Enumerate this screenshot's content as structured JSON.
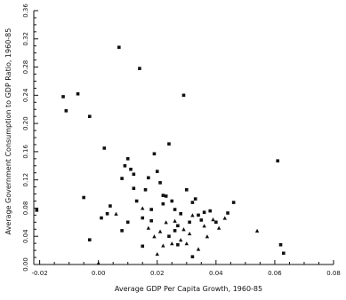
{
  "chart_data": {
    "type": "scatter",
    "title": "",
    "xlabel": "Average GDP Per Capita Growth, 1960-85",
    "ylabel": "Average Government Consumption to GDP Ratio, 1960-85",
    "xlim": [
      -0.022,
      0.08
    ],
    "ylim": [
      0,
      0.36
    ],
    "grid": false,
    "x_ticks": [
      {
        "value": -0.02,
        "label": "-0.02"
      },
      {
        "value": 0.0,
        "label": "0.00"
      },
      {
        "value": 0.02,
        "label": "0.02"
      },
      {
        "value": 0.04,
        "label": "0.04"
      },
      {
        "value": 0.06,
        "label": "0.06"
      },
      {
        "value": 0.08,
        "label": "0.08"
      }
    ],
    "y_ticks": [
      {
        "value": 0.0,
        "label": "0.00"
      },
      {
        "value": 0.04,
        "label": "0.04"
      },
      {
        "value": 0.08,
        "label": "0.08"
      },
      {
        "value": 0.12,
        "label": "0.12"
      },
      {
        "value": 0.16,
        "label": "0.16"
      },
      {
        "value": 0.2,
        "label": "0.20"
      },
      {
        "value": 0.24,
        "label": "0.24"
      },
      {
        "value": 0.28,
        "label": "0.28"
      },
      {
        "value": 0.32,
        "label": "0.32"
      },
      {
        "value": 0.36,
        "label": "0.36"
      }
    ],
    "series": [
      {
        "marker": "square",
        "color": "#111111",
        "points": [
          [
            -0.021,
            0.077
          ],
          [
            -0.012,
            0.238
          ],
          [
            -0.011,
            0.218
          ],
          [
            -0.007,
            0.242
          ],
          [
            -0.003,
            0.21
          ],
          [
            -0.005,
            0.095
          ],
          [
            -0.003,
            0.035
          ],
          [
            0.001,
            0.066
          ],
          [
            0.002,
            0.165
          ],
          [
            0.003,
            0.072
          ],
          [
            0.004,
            0.083
          ],
          [
            0.007,
            0.308
          ],
          [
            0.008,
            0.122
          ],
          [
            0.009,
            0.14
          ],
          [
            0.01,
            0.15
          ],
          [
            0.011,
            0.135
          ],
          [
            0.012,
            0.128
          ],
          [
            0.012,
            0.108
          ],
          [
            0.013,
            0.09
          ],
          [
            0.014,
            0.278
          ],
          [
            0.015,
            0.066
          ],
          [
            0.016,
            0.106
          ],
          [
            0.017,
            0.123
          ],
          [
            0.018,
            0.078
          ],
          [
            0.019,
            0.157
          ],
          [
            0.02,
            0.132
          ],
          [
            0.021,
            0.116
          ],
          [
            0.022,
            0.098
          ],
          [
            0.023,
            0.097
          ],
          [
            0.024,
            0.171
          ],
          [
            0.025,
            0.09
          ],
          [
            0.026,
            0.078
          ],
          [
            0.027,
            0.055
          ],
          [
            0.028,
            0.072
          ],
          [
            0.029,
            0.24
          ],
          [
            0.03,
            0.106
          ],
          [
            0.031,
            0.06
          ],
          [
            0.032,
            0.088
          ],
          [
            0.033,
            0.093
          ],
          [
            0.034,
            0.07
          ],
          [
            0.035,
            0.063
          ],
          [
            0.036,
            0.074
          ],
          [
            0.038,
            0.076
          ],
          [
            0.04,
            0.06
          ],
          [
            0.044,
            0.073
          ],
          [
            0.046,
            0.088
          ],
          [
            0.008,
            0.048
          ],
          [
            0.015,
            0.026
          ],
          [
            0.024,
            0.04
          ],
          [
            0.027,
            0.028
          ],
          [
            0.032,
            0.011
          ],
          [
            0.061,
            0.147
          ],
          [
            0.062,
            0.028
          ],
          [
            0.063,
            0.016
          ],
          [
            0.022,
            0.086
          ],
          [
            0.018,
            0.062
          ],
          [
            0.01,
            0.06
          ],
          [
            0.026,
            0.048
          ]
        ]
      },
      {
        "marker": "triangle",
        "color": "#111111",
        "points": [
          [
            0.006,
            0.072
          ],
          [
            0.015,
            0.08
          ],
          [
            0.017,
            0.052
          ],
          [
            0.019,
            0.04
          ],
          [
            0.02,
            0.015
          ],
          [
            0.021,
            0.047
          ],
          [
            0.022,
            0.027
          ],
          [
            0.023,
            0.06
          ],
          [
            0.025,
            0.03
          ],
          [
            0.026,
            0.062
          ],
          [
            0.028,
            0.035
          ],
          [
            0.029,
            0.05
          ],
          [
            0.03,
            0.03
          ],
          [
            0.031,
            0.044
          ],
          [
            0.032,
            0.07
          ],
          [
            0.034,
            0.022
          ],
          [
            0.036,
            0.055
          ],
          [
            0.037,
            0.04
          ],
          [
            0.039,
            0.064
          ],
          [
            0.041,
            0.052
          ],
          [
            0.043,
            0.066
          ],
          [
            0.054,
            0.048
          ],
          [
            0.0,
            0.002
          ]
        ]
      }
    ]
  }
}
